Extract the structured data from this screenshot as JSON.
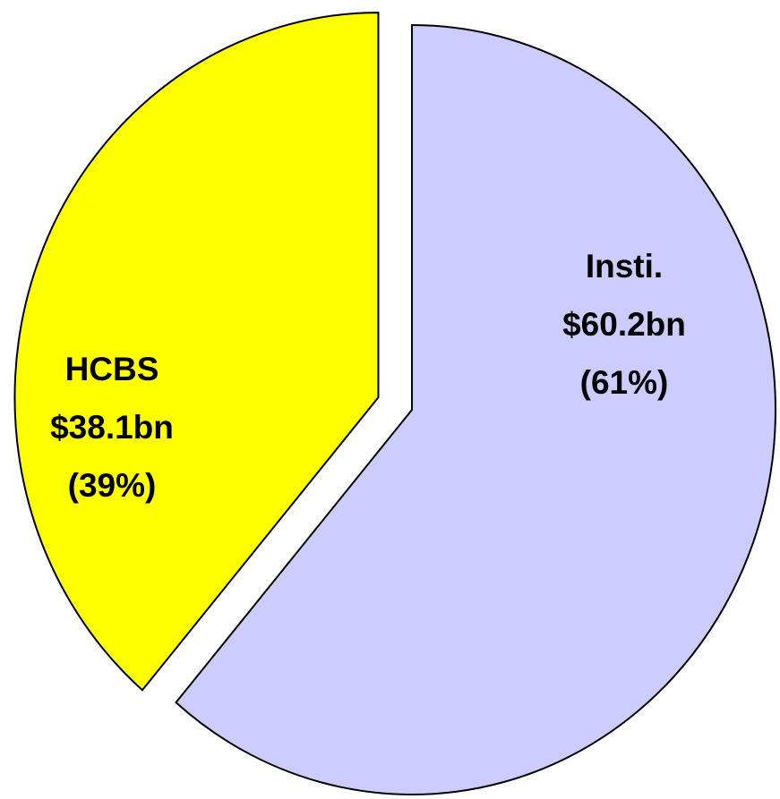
{
  "chart_data": {
    "type": "pie",
    "categories": [
      "Insti.",
      "HCBS"
    ],
    "values": [
      60.2,
      38.1
    ],
    "value_labels": [
      "$60.2bn",
      "$38.1bn"
    ],
    "percents": [
      61,
      39
    ],
    "percent_labels": [
      "(61%)",
      "(39%)"
    ],
    "colors": [
      "#ccccff",
      "#ffff00"
    ]
  }
}
